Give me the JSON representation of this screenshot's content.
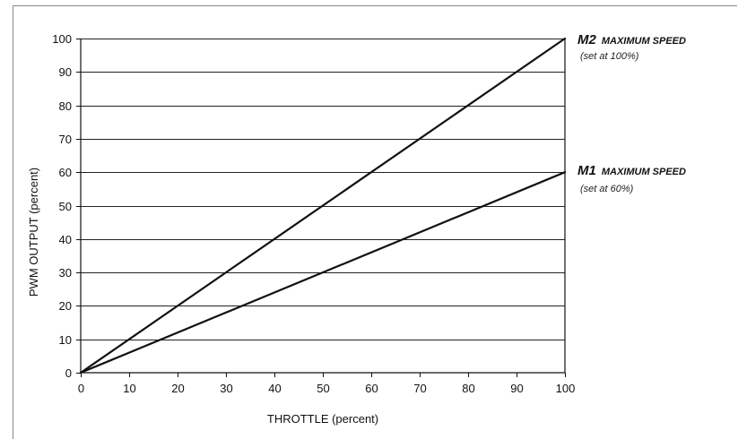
{
  "chart_data": {
    "type": "line",
    "xlabel": "THROTTLE  (percent)",
    "ylabel": "PWM OUTPUT  (percent)",
    "xlim": [
      0,
      100
    ],
    "ylim": [
      0,
      100
    ],
    "xticks": [
      0,
      10,
      20,
      30,
      40,
      50,
      60,
      70,
      80,
      90,
      100
    ],
    "yticks": [
      0,
      10,
      20,
      30,
      40,
      50,
      60,
      70,
      80,
      90,
      100
    ],
    "grid": "horizontal",
    "series": [
      {
        "name": "M2",
        "x": [
          0,
          100
        ],
        "y": [
          0,
          100
        ]
      },
      {
        "name": "M1",
        "x": [
          0,
          100
        ],
        "y": [
          0,
          60
        ]
      }
    ],
    "annotations": [
      {
        "series": "M2",
        "label": "M2",
        "description": "MAXIMUM SPEED",
        "note": "(set at 100%)"
      },
      {
        "series": "M1",
        "label": "M1",
        "description": "MAXIMUM SPEED",
        "note": "(set at 60%)"
      }
    ]
  }
}
